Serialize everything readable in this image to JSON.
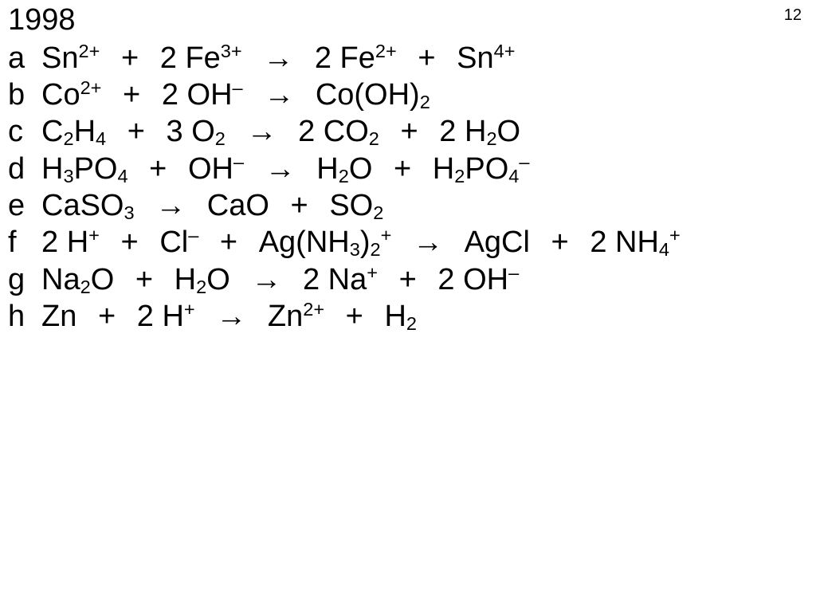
{
  "page_number": "12",
  "year": "1998",
  "text_color": "#000000",
  "background_color": "#ffffff",
  "font_size_pt": 28,
  "page_number_font_size_pt": 15,
  "arrow_glyph": "→",
  "equations": [
    {
      "label": "a",
      "tokens": [
        {
          "t": "species",
          "base": "Sn",
          "sup": "2+"
        },
        {
          "t": "plus"
        },
        {
          "t": "text",
          "v": "2 "
        },
        {
          "t": "species",
          "base": "Fe",
          "sup": "3+"
        },
        {
          "t": "arrow"
        },
        {
          "t": "text",
          "v": "2 "
        },
        {
          "t": "species",
          "base": "Fe",
          "sup": "2+"
        },
        {
          "t": "plus"
        },
        {
          "t": "species",
          "base": "Sn",
          "sup": "4+"
        }
      ]
    },
    {
      "label": "b",
      "tokens": [
        {
          "t": "species",
          "base": "Co",
          "sup": "2+"
        },
        {
          "t": "plus"
        },
        {
          "t": "text",
          "v": "2 "
        },
        {
          "t": "species",
          "base": "OH",
          "sup": "–"
        },
        {
          "t": "arrow"
        },
        {
          "t": "species",
          "base": "Co(OH)",
          "sub": "2"
        }
      ]
    },
    {
      "label": "c",
      "tokens": [
        {
          "t": "species",
          "parts": [
            {
              "b": "C",
              "sub": "2"
            },
            {
              "b": "H",
              "sub": "4"
            }
          ]
        },
        {
          "t": "plus"
        },
        {
          "t": "text",
          "v": "3 "
        },
        {
          "t": "species",
          "base": "O",
          "sub": "2"
        },
        {
          "t": "arrow"
        },
        {
          "t": "text",
          "v": "2 "
        },
        {
          "t": "species",
          "base": "CO",
          "sub": "2"
        },
        {
          "t": "plus"
        },
        {
          "t": "text",
          "v": "2 "
        },
        {
          "t": "species",
          "parts": [
            {
              "b": "H",
              "sub": "2"
            },
            {
              "b": "O"
            }
          ]
        }
      ]
    },
    {
      "label": "d",
      "tokens": [
        {
          "t": "species",
          "parts": [
            {
              "b": "H",
              "sub": "3"
            },
            {
              "b": "PO",
              "sub": "4"
            }
          ]
        },
        {
          "t": "plus"
        },
        {
          "t": "species",
          "base": "OH",
          "sup": "–"
        },
        {
          "t": "arrow"
        },
        {
          "t": "species",
          "parts": [
            {
              "b": "H",
              "sub": "2"
            },
            {
              "b": "O"
            }
          ]
        },
        {
          "t": "plus"
        },
        {
          "t": "species",
          "parts": [
            {
              "b": "H",
              "sub": "2"
            },
            {
              "b": "PO",
              "sub": "4",
              "sup": "–"
            }
          ]
        }
      ]
    },
    {
      "label": "e",
      "tokens": [
        {
          "t": "species",
          "base": "CaSO",
          "sub": "3"
        },
        {
          "t": "arrow"
        },
        {
          "t": "species",
          "base": "CaO"
        },
        {
          "t": "plus"
        },
        {
          "t": "species",
          "base": "SO",
          "sub": "2"
        }
      ]
    },
    {
      "label": "f",
      "tokens": [
        {
          "t": "text",
          "v": "2 "
        },
        {
          "t": "species",
          "base": "H",
          "sup": "+"
        },
        {
          "t": "plus"
        },
        {
          "t": "species",
          "base": "Cl",
          "sup": "–"
        },
        {
          "t": "plus"
        },
        {
          "t": "species",
          "parts": [
            {
              "b": "Ag(NH",
              "sub": "3"
            },
            {
              "b": ")",
              "sub": "2",
              "sup": "+"
            }
          ]
        },
        {
          "t": "arrow"
        },
        {
          "t": "species",
          "base": "AgCl"
        },
        {
          "t": "plus"
        },
        {
          "t": "text",
          "v": "2 "
        },
        {
          "t": "species",
          "parts": [
            {
              "b": "NH",
              "sub": "4",
              "sup": "+"
            }
          ]
        }
      ]
    },
    {
      "label": "g",
      "tokens": [
        {
          "t": "species",
          "parts": [
            {
              "b": "Na",
              "sub": "2"
            },
            {
              "b": "O"
            }
          ]
        },
        {
          "t": "plus"
        },
        {
          "t": "species",
          "parts": [
            {
              "b": "H",
              "sub": "2"
            },
            {
              "b": "O"
            }
          ]
        },
        {
          "t": "arrow"
        },
        {
          "t": "text",
          "v": "2 "
        },
        {
          "t": "species",
          "base": "Na",
          "sup": "+"
        },
        {
          "t": "plus"
        },
        {
          "t": "text",
          "v": "2 "
        },
        {
          "t": "species",
          "base": "OH",
          "sup": "–"
        }
      ]
    },
    {
      "label": "h",
      "tokens": [
        {
          "t": "species",
          "base": "Zn"
        },
        {
          "t": "plus"
        },
        {
          "t": "text",
          "v": "2 "
        },
        {
          "t": "species",
          "base": "H",
          "sup": "+"
        },
        {
          "t": "arrow"
        },
        {
          "t": "species",
          "base": "Zn",
          "sup": "2+"
        },
        {
          "t": "plus"
        },
        {
          "t": "species",
          "base": "H",
          "sub": "2"
        }
      ]
    }
  ]
}
